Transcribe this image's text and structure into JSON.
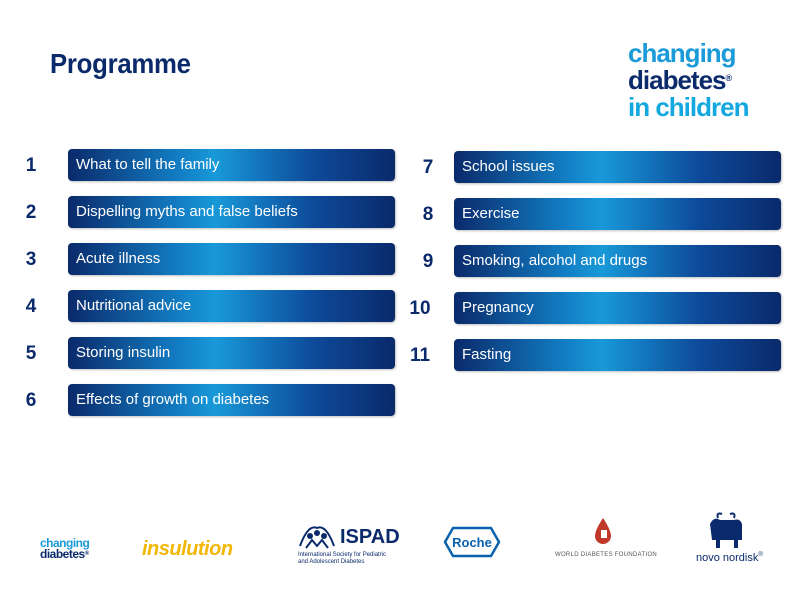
{
  "title": "Programme",
  "brand": {
    "line1": "changing",
    "line2": "diabetes",
    "reg": "®",
    "line3": "in children"
  },
  "left_items": [
    {
      "num": "1",
      "label": "What to tell the family"
    },
    {
      "num": "2",
      "label": "Dispelling myths and false beliefs"
    },
    {
      "num": "3",
      "label": "Acute illness"
    },
    {
      "num": "4",
      "label": "Nutritional advice"
    },
    {
      "num": "5",
      "label": "Storing insulin"
    },
    {
      "num": "6",
      "label": "Effects of growth on diabetes"
    }
  ],
  "right_items": [
    {
      "num": "7",
      "label": "School issues"
    },
    {
      "num": "8",
      "label": "Exercise"
    },
    {
      "num": "9",
      "label": "Smoking, alcohol and drugs"
    },
    {
      "num": "10",
      "label": "Pregnancy"
    },
    {
      "num": "11",
      "label": "Fasting"
    }
  ],
  "logos": {
    "changing_diabetes": {
      "line1": "changing",
      "line2": "diabetes",
      "reg": "®"
    },
    "insulution": "insulution",
    "ispad": {
      "name": "ISPAD",
      "sub1": "International Society for Pediatric",
      "sub2": "and Adolescent Diabetes"
    },
    "roche": "Roche",
    "wdf": "WORLD DIABETES FOUNDATION",
    "novo": "novo nordisk",
    "novo_reg": "®"
  },
  "colors": {
    "navy": "#0a2a6b",
    "blue": "#1899d8",
    "insulution": "#f2b705",
    "wdf_red": "#c0392b"
  }
}
